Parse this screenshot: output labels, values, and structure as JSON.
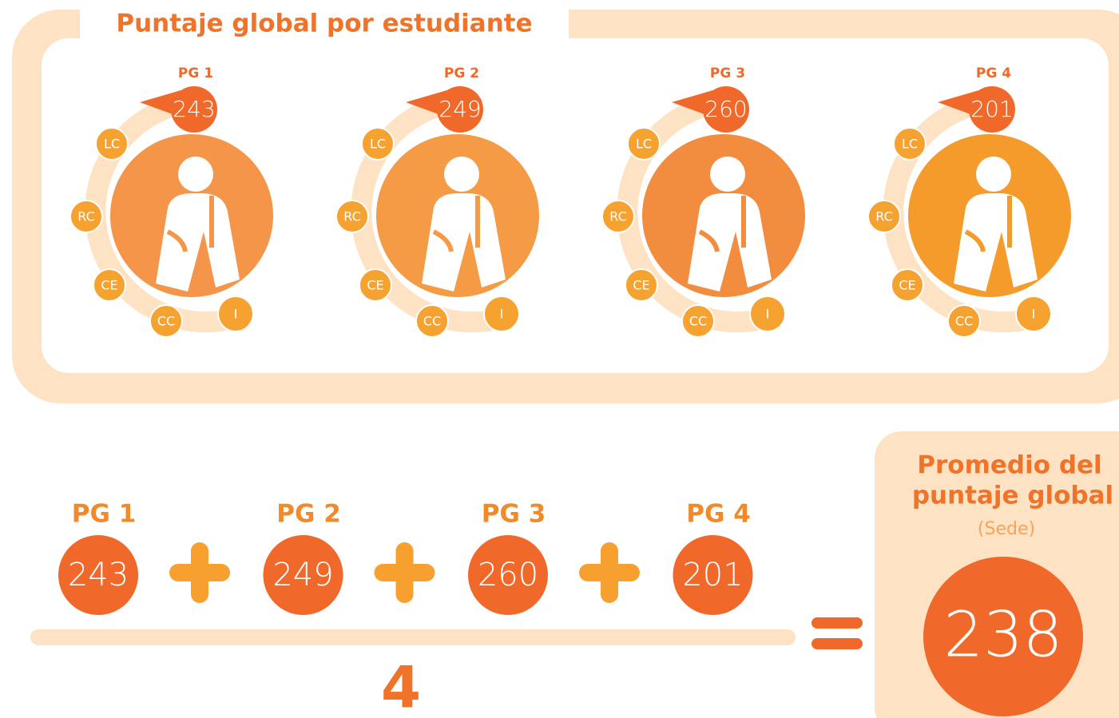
{
  "header": {
    "title": "Puntaje global por estudiante"
  },
  "areas": [
    "LC",
    "RC",
    "CE",
    "CC",
    "I"
  ],
  "students": [
    {
      "label": "PG 1",
      "score": 243
    },
    {
      "label": "PG 2",
      "score": 249
    },
    {
      "label": "PG 3",
      "score": 260
    },
    {
      "label": "PG 4",
      "score": 201
    }
  ],
  "average": {
    "divisor": 4,
    "title": [
      "Promedio del",
      "puntaje global"
    ],
    "subtitle": "(Sede)",
    "value": 238
  }
}
